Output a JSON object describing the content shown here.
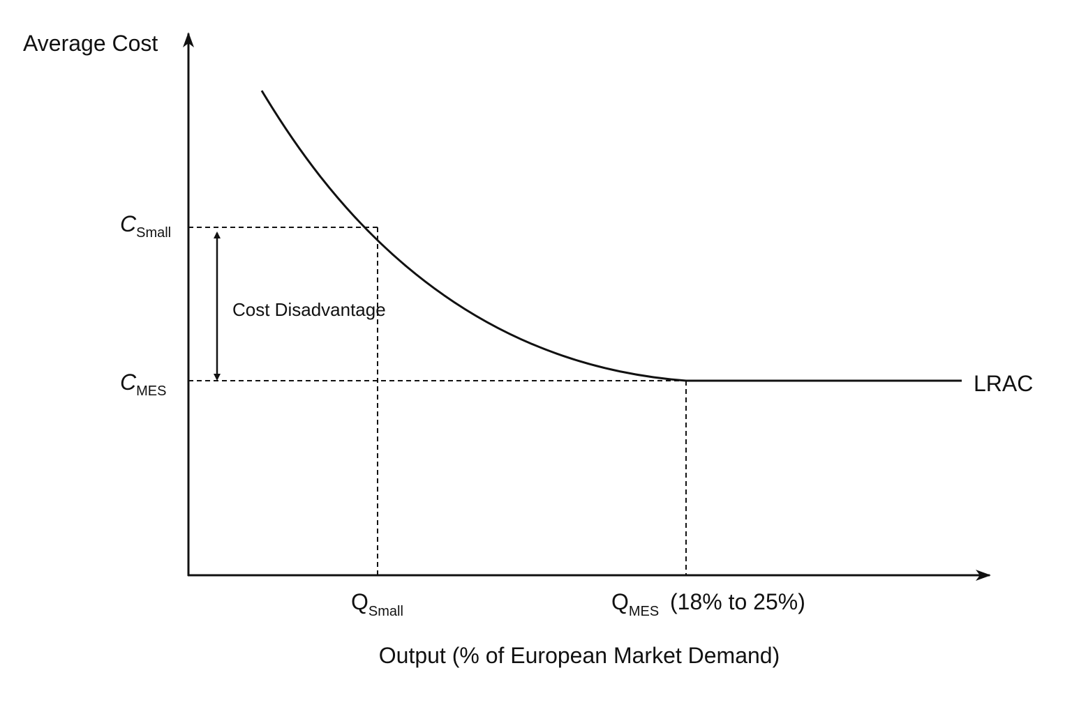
{
  "y_axis": {
    "label": "Average Cost"
  },
  "x_axis": {
    "label": "Output (% of European Market Demand)"
  },
  "cost_labels": [
    {
      "symbol": "C",
      "subscript": "Small"
    },
    {
      "symbol": "C",
      "subscript": "MES"
    }
  ],
  "output_labels": [
    {
      "symbol": "Q",
      "subscript": "Small"
    },
    {
      "symbol": "Q",
      "subscript": "MES",
      "note": "(18% to 25%)"
    }
  ],
  "annotation": "Cost Disadvantage",
  "curve_label": "LRAC"
}
